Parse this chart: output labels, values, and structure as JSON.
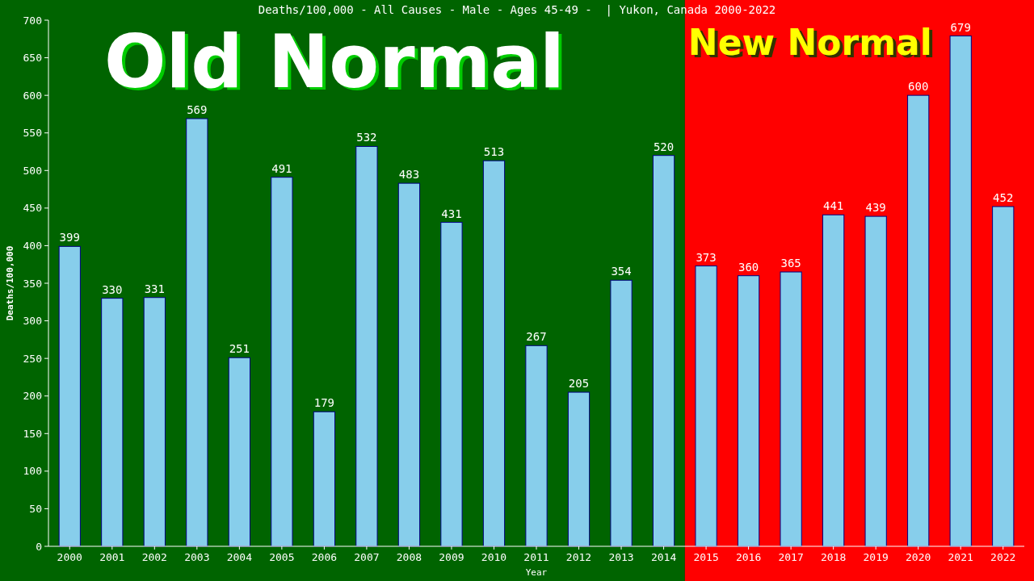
{
  "chart_data": {
    "type": "bar",
    "title": "Deaths/100,000 - All Causes - Male - Ages 45-49 -  | Yukon, Canada 2000-2022",
    "xlabel": "Year",
    "ylabel": "Deaths/100,000",
    "categories": [
      "2000",
      "2001",
      "2002",
      "2003",
      "2004",
      "2005",
      "2006",
      "2007",
      "2008",
      "2009",
      "2010",
      "2011",
      "2012",
      "2013",
      "2014",
      "2015",
      "2016",
      "2017",
      "2018",
      "2019",
      "2020",
      "2021",
      "2022"
    ],
    "values": [
      399,
      330,
      331,
      569,
      251,
      491,
      179,
      532,
      483,
      431,
      513,
      267,
      205,
      354,
      520,
      373,
      360,
      365,
      441,
      439,
      600,
      679,
      452
    ],
    "color": "#87ceeb",
    "ylim": [
      0,
      700
    ],
    "yticks": [
      0,
      50,
      100,
      150,
      200,
      250,
      300,
      350,
      400,
      450,
      500,
      550,
      600,
      650,
      700
    ],
    "grid": false,
    "data_labels": true,
    "bands": [
      {
        "axis": "x",
        "from": "2000",
        "to": "2014",
        "label": "Old Normal",
        "color": "#006400"
      },
      {
        "axis": "x",
        "from": "2015",
        "to": "2022",
        "label": "New Normal",
        "color": "#ff0000"
      }
    ]
  }
}
